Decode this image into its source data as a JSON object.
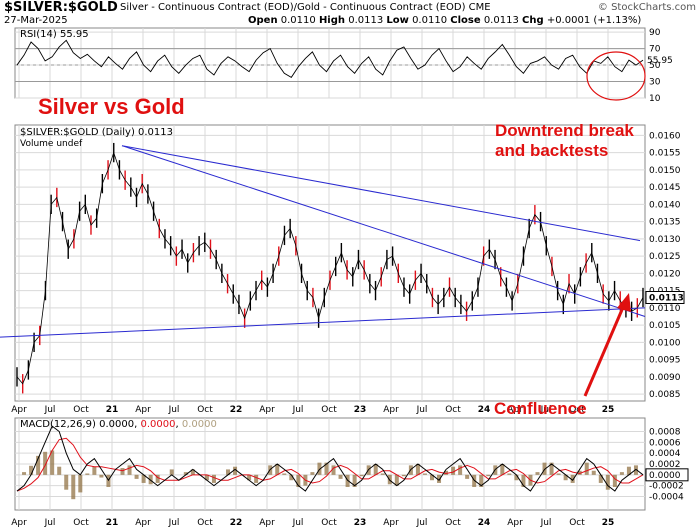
{
  "header": {
    "symbol": "$SILVER:$GOLD",
    "description": "Silver - Continuous Contract (EOD)/Gold - Continuous Contract (EOD) CME",
    "date": "27-Mar-2025",
    "ohlc": {
      "open_label": "Open",
      "open": "0.0110",
      "high_label": "High",
      "high": "0.0113",
      "low_label": "Low",
      "low": "0.0110",
      "close_label": "Close",
      "close": "0.0113",
      "chg_label": "Chg",
      "chg": "+0.0001 (+1.13%)"
    },
    "brand": "© StockCharts.com"
  },
  "annotations": {
    "title": "Silver vs Gold",
    "downtrend": "Downtrend break",
    "backtests": "and backtests",
    "confluence": "Confluence"
  },
  "colors": {
    "price_line": "#000000",
    "down_bar": "#e0101a",
    "trendline": "#2a2ad0",
    "annotation": "#e01010",
    "grid": "#d9d9d9",
    "macd_hist": "#8b6b3a",
    "macd_signal": "#e0101a"
  },
  "chart_data": [
    {
      "type": "line",
      "panel": "rsi",
      "title": "RSI(14) 55.95",
      "last_value_label": "55.95",
      "ylim": [
        10,
        95
      ],
      "y_ticks": [
        10,
        30,
        50,
        70,
        90
      ],
      "reference_lines": [
        30,
        50,
        70
      ],
      "values": [
        50,
        62,
        78,
        70,
        55,
        60,
        72,
        80,
        65,
        58,
        63,
        55,
        48,
        60,
        52,
        45,
        58,
        66,
        50,
        42,
        55,
        62,
        48,
        40,
        50,
        58,
        62,
        45,
        38,
        52,
        60,
        55,
        48,
        42,
        56,
        65,
        70,
        52,
        40,
        35,
        48,
        58,
        66,
        50,
        42,
        55,
        62,
        48,
        40,
        52,
        60,
        45,
        38,
        55,
        68,
        72,
        58,
        45,
        50,
        62,
        70,
        55,
        42,
        48,
        60,
        52,
        45,
        58,
        66,
        75,
        62,
        48,
        40,
        52,
        55,
        60,
        50,
        45,
        58,
        62,
        48,
        40,
        55,
        52,
        60,
        48,
        42,
        56,
        50,
        55.95
      ]
    },
    {
      "type": "line",
      "panel": "price",
      "title": "$SILVER:$GOLD (Daily) 0.0113",
      "volume_label": "Volume undef",
      "last_value_label": "0.0113",
      "x_tick_labels": [
        "Apr",
        "Jul",
        "Oct",
        "21",
        "Apr",
        "Jul",
        "Oct",
        "22",
        "Apr",
        "Jul",
        "Oct",
        "23",
        "Apr",
        "Jul",
        "Oct",
        "24",
        "Apr",
        "Jul",
        "Oct",
        "25"
      ],
      "ylim": [
        0.0083,
        0.0163
      ],
      "y_ticks": [
        0.0085,
        0.009,
        0.0095,
        0.01,
        0.0105,
        0.011,
        0.0115,
        0.012,
        0.0125,
        0.013,
        0.0135,
        0.014,
        0.0145,
        0.015,
        0.0155,
        0.016
      ],
      "y_tick_labels": [
        "0.0085",
        "0.0090",
        "0.0095",
        "0.0100",
        "0.0105",
        "0.0110",
        "0.0115",
        "0.0120",
        "0.0125",
        "0.0130",
        "0.0135",
        "0.0140",
        "0.0145",
        "0.0150",
        "0.0155",
        "0.0160"
      ],
      "values": [
        0.009,
        0.0088,
        0.0092,
        0.01,
        0.0102,
        0.0115,
        0.014,
        0.0142,
        0.0135,
        0.0127,
        0.013,
        0.0138,
        0.014,
        0.0134,
        0.0136,
        0.0146,
        0.015,
        0.0155,
        0.015,
        0.0147,
        0.0145,
        0.0142,
        0.0146,
        0.0143,
        0.0138,
        0.0133,
        0.013,
        0.0128,
        0.0125,
        0.0127,
        0.0123,
        0.0126,
        0.0128,
        0.0129,
        0.0127,
        0.0124,
        0.012,
        0.0117,
        0.0114,
        0.0111,
        0.0107,
        0.0112,
        0.0115,
        0.0118,
        0.0116,
        0.012,
        0.0125,
        0.0131,
        0.0133,
        0.0128,
        0.012,
        0.0115,
        0.0113,
        0.0107,
        0.0113,
        0.0118,
        0.0122,
        0.0126,
        0.0121,
        0.0119,
        0.0124,
        0.0121,
        0.0117,
        0.0115,
        0.0119,
        0.0124,
        0.0125,
        0.012,
        0.0116,
        0.0114,
        0.0118,
        0.012,
        0.0117,
        0.0113,
        0.0111,
        0.0113,
        0.0116,
        0.0113,
        0.0111,
        0.0109,
        0.0112,
        0.0116,
        0.0125,
        0.0127,
        0.0124,
        0.0119,
        0.0116,
        0.0112,
        0.0117,
        0.0125,
        0.0133,
        0.0137,
        0.0135,
        0.0128,
        0.0122,
        0.0115,
        0.0111,
        0.0117,
        0.0114,
        0.0119,
        0.0123,
        0.0126,
        0.012,
        0.0114,
        0.0112,
        0.0115,
        0.0112,
        0.011,
        0.0109,
        0.011,
        0.0113
      ],
      "down_bar_every": 3
    },
    {
      "type": "line",
      "panel": "macd",
      "title": "MACD(12,26,9) 0.0000, 0.0000, 0.0000",
      "legend": {
        "macd": "MACD(12,26,9)",
        "macd_value": "0.0000",
        "signal_value": "0.0000",
        "hist_value": "0.0000"
      },
      "last_value_label": "0.0000",
      "ylim": [
        -0.00065,
        0.00105
      ],
      "y_ticks": [
        -0.0004,
        -0.0002,
        0.0,
        0.0002,
        0.0004,
        0.0006,
        0.0008
      ],
      "y_tick_labels": [
        "-0.0004",
        "-0.0002",
        "0.0000",
        "0.0002",
        "0.0004",
        "0.0006",
        "0.0008"
      ],
      "macd": [
        -0.0003,
        -0.0002,
        0.0,
        0.0003,
        0.0006,
        0.0009,
        0.0008,
        0.0004,
        0.0001,
        0.0,
        0.0002,
        0.0003,
        0.0001,
        -0.0001,
        0.0001,
        0.0002,
        0.0003,
        0.0001,
        0.0,
        -0.0001,
        -0.0002,
        -0.0001,
        0.0,
        -0.0001,
        0.0,
        0.0001,
        0.0,
        -0.0001,
        -0.0002,
        -0.0001,
        0.0,
        0.0001,
        0.0,
        -0.0001,
        -0.0002,
        -0.0001,
        0.0001,
        0.0002,
        0.0001,
        0.0,
        -0.0002,
        -0.0003,
        -0.0001,
        0.0001,
        0.0002,
        0.0003,
        0.0001,
        -0.0001,
        -0.0002,
        -0.0001,
        0.0001,
        0.0002,
        0.0001,
        -0.0001,
        -0.0002,
        -0.0001,
        0.0001,
        0.0002,
        0.0001,
        0.0,
        -0.0001,
        0.0001,
        0.0002,
        0.0003,
        0.0001,
        -0.0001,
        -0.0002,
        -0.0001,
        0.0001,
        0.0002,
        0.0001,
        0.0,
        -0.0002,
        -0.0003,
        -0.0001,
        0.0001,
        0.0002,
        0.0001,
        0.0,
        -0.0001,
        0.0001,
        0.0003,
        0.0002,
        0.0,
        -0.0002,
        -0.0003,
        -0.0001,
        0.0,
        0.0001,
        0.0
      ],
      "histogram_color_word": "brown"
    }
  ]
}
